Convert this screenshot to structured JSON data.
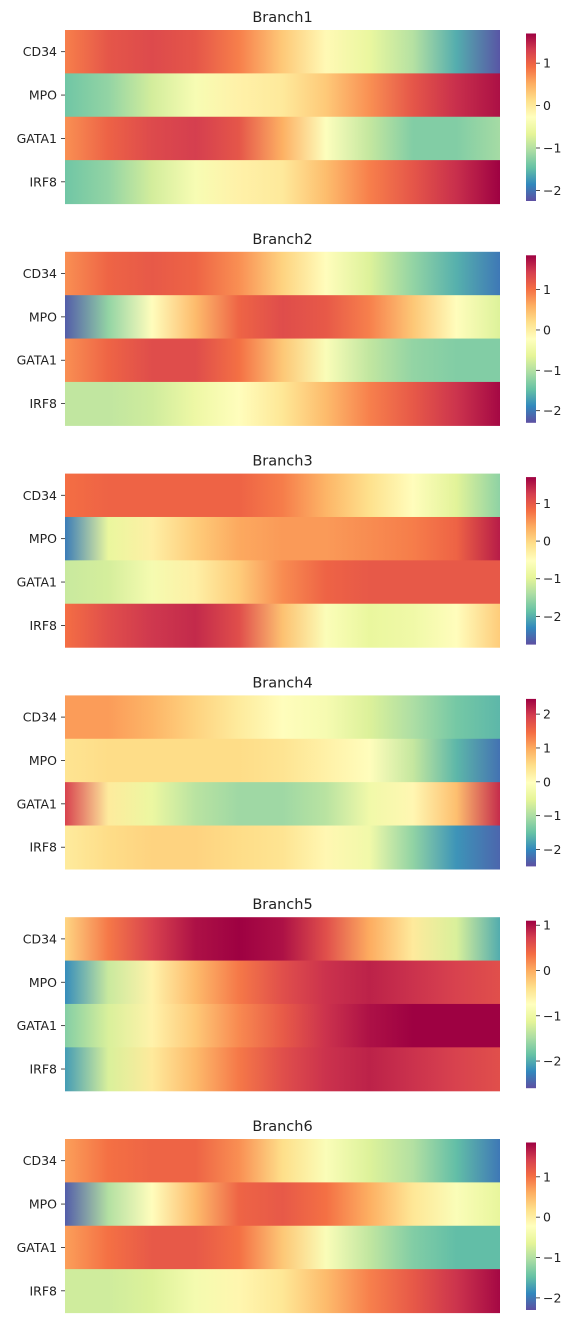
{
  "colorscale": {
    "name": "Spectral_r",
    "stops": [
      "#5e4fa2",
      "#3288bd",
      "#66c2a5",
      "#abdda4",
      "#e6f598",
      "#ffffbf",
      "#fee08b",
      "#fdae61",
      "#f46d43",
      "#d53e4f",
      "#9e0142"
    ]
  },
  "chart_data": [
    {
      "type": "heatmap",
      "title": "Branch1",
      "rows": [
        "CD34",
        "MPO",
        "GATA1",
        "IRF8"
      ],
      "x_positions": [
        0,
        0.1,
        0.2,
        0.3,
        0.4,
        0.5,
        0.6,
        0.7,
        0.8,
        0.9,
        1.0
      ],
      "values": [
        [
          0.8,
          1.1,
          1.2,
          1.1,
          0.8,
          0.3,
          -0.2,
          -0.6,
          -1.0,
          -1.6,
          -2.2
        ],
        [
          -1.4,
          -1.2,
          -0.8,
          -0.4,
          -0.1,
          0.0,
          0.3,
          0.7,
          1.1,
          1.4,
          1.6
        ],
        [
          0.7,
          1.0,
          1.2,
          1.3,
          1.1,
          0.5,
          -0.3,
          -0.9,
          -1.3,
          -1.3,
          -1.1
        ],
        [
          -1.4,
          -1.2,
          -0.8,
          -0.4,
          -0.1,
          0.0,
          0.4,
          0.8,
          1.1,
          1.4,
          1.7
        ]
      ],
      "colorbar": {
        "ticks": [
          1,
          0,
          -1,
          -2
        ],
        "tick_labels": [
          "1",
          "0",
          "−1",
          "−2"
        ],
        "range": [
          -2.25,
          1.7
        ]
      }
    },
    {
      "type": "heatmap",
      "title": "Branch2",
      "rows": [
        "CD34",
        "MPO",
        "GATA1",
        "IRF8"
      ],
      "x_positions": [
        0,
        0.1,
        0.2,
        0.3,
        0.4,
        0.5,
        0.6,
        0.7,
        0.8,
        0.9,
        1.0
      ],
      "values": [
        [
          0.8,
          1.1,
          1.2,
          1.1,
          0.8,
          0.3,
          -0.2,
          -0.7,
          -1.2,
          -1.6,
          -2.0
        ],
        [
          -2.2,
          -1.2,
          -0.2,
          0.5,
          1.1,
          1.3,
          1.2,
          0.9,
          0.4,
          -0.2,
          -0.7
        ],
        [
          0.8,
          1.1,
          1.3,
          1.3,
          1.0,
          0.4,
          -0.3,
          -0.9,
          -1.2,
          -1.3,
          -1.3
        ],
        [
          -0.9,
          -0.9,
          -0.8,
          -0.5,
          -0.2,
          0.1,
          0.5,
          0.9,
          1.2,
          1.5,
          1.8
        ]
      ],
      "colorbar": {
        "ticks": [
          1,
          0,
          -1,
          -2
        ],
        "tick_labels": [
          "1",
          "0",
          "−1",
          "−2"
        ],
        "range": [
          -2.3,
          1.85
        ]
      }
    },
    {
      "type": "heatmap",
      "title": "Branch3",
      "rows": [
        "CD34",
        "MPO",
        "GATA1",
        "IRF8"
      ],
      "x_positions": [
        0,
        0.1,
        0.2,
        0.3,
        0.4,
        0.5,
        0.6,
        0.7,
        0.8,
        0.9,
        1.0
      ],
      "values": [
        [
          0.8,
          0.9,
          0.9,
          0.9,
          0.9,
          0.7,
          0.3,
          -0.1,
          -0.5,
          -1.0,
          -1.6
        ],
        [
          -2.4,
          -0.9,
          -0.3,
          0.1,
          0.4,
          0.5,
          0.5,
          0.6,
          0.7,
          0.9,
          1.5
        ],
        [
          -1.2,
          -1.1,
          -0.7,
          -0.3,
          0.1,
          0.6,
          0.9,
          1.0,
          1.0,
          1.0,
          1.0
        ],
        [
          0.8,
          1.1,
          1.3,
          1.4,
          1.1,
          0.2,
          -0.6,
          -0.9,
          -0.8,
          -0.5,
          0.1
        ]
      ],
      "colorbar": {
        "ticks": [
          1,
          0,
          -1,
          -2
        ],
        "tick_labels": [
          "1",
          "0",
          "−1",
          "−2"
        ],
        "range": [
          -2.75,
          1.7
        ]
      }
    },
    {
      "type": "heatmap",
      "title": "Branch4",
      "rows": [
        "CD34",
        "MPO",
        "GATA1",
        "IRF8"
      ],
      "x_positions": [
        0,
        0.1,
        0.2,
        0.3,
        0.4,
        0.5,
        0.6,
        0.7,
        0.8,
        0.9,
        1.0
      ],
      "values": [
        [
          1.1,
          1.1,
          0.9,
          0.6,
          0.3,
          0.0,
          -0.2,
          -0.6,
          -1.0,
          -1.4,
          -1.6
        ],
        [
          0.4,
          0.5,
          0.5,
          0.5,
          0.5,
          0.4,
          0.2,
          0.0,
          -0.8,
          -1.6,
          -2.2
        ],
        [
          1.9,
          0.3,
          -0.4,
          -0.9,
          -1.1,
          -1.1,
          -0.9,
          -0.3,
          0.1,
          0.8,
          2.1
        ],
        [
          0.3,
          0.5,
          0.6,
          0.6,
          0.5,
          0.4,
          0.1,
          -0.3,
          -1.2,
          -1.9,
          -2.3
        ]
      ],
      "colorbar": {
        "ticks": [
          2,
          1,
          0,
          -1,
          -2
        ],
        "tick_labels": [
          "2",
          "1",
          "0",
          "−1",
          "−2"
        ],
        "range": [
          -2.5,
          2.45
        ]
      }
    },
    {
      "type": "heatmap",
      "title": "Branch5",
      "rows": [
        "CD34",
        "MPO",
        "GATA1",
        "IRF8"
      ],
      "x_positions": [
        0,
        0.1,
        0.2,
        0.3,
        0.4,
        0.5,
        0.6,
        0.7,
        0.8,
        0.9,
        1.0
      ],
      "values": [
        [
          -0.3,
          0.3,
          0.7,
          1.0,
          1.1,
          1.0,
          0.6,
          0.0,
          -0.5,
          -1.2,
          -2.0
        ],
        [
          -2.2,
          -1.3,
          -0.6,
          -0.1,
          0.3,
          0.6,
          0.8,
          0.9,
          0.8,
          0.7,
          0.6
        ],
        [
          -1.7,
          -1.2,
          -0.6,
          -0.2,
          0.2,
          0.5,
          0.8,
          1.0,
          1.1,
          1.1,
          1.1
        ],
        [
          -2.1,
          -1.2,
          -0.5,
          -0.1,
          0.3,
          0.6,
          0.8,
          0.9,
          0.8,
          0.7,
          0.6
        ]
      ],
      "colorbar": {
        "ticks": [
          1,
          0,
          -1,
          -2
        ],
        "tick_labels": [
          "1",
          "0",
          "−1",
          "−2"
        ],
        "range": [
          -2.6,
          1.1
        ]
      }
    },
    {
      "type": "heatmap",
      "title": "Branch6",
      "rows": [
        "CD34",
        "MPO",
        "GATA1",
        "IRF8"
      ],
      "x_positions": [
        0,
        0.1,
        0.2,
        0.3,
        0.4,
        0.5,
        0.6,
        0.7,
        0.8,
        0.9,
        1.0
      ],
      "values": [
        [
          0.7,
          1.0,
          1.1,
          1.1,
          0.8,
          0.2,
          -0.3,
          -0.7,
          -1.0,
          -1.5,
          -2.0
        ],
        [
          -2.2,
          -1.0,
          -0.2,
          0.5,
          1.1,
          1.2,
          1.0,
          0.6,
          0.1,
          -0.3,
          -0.6
        ],
        [
          0.7,
          1.0,
          1.2,
          1.2,
          1.0,
          0.4,
          -0.3,
          -0.9,
          -1.3,
          -1.5,
          -1.5
        ],
        [
          -0.8,
          -0.8,
          -0.7,
          -0.4,
          -0.1,
          0.1,
          0.5,
          0.9,
          1.2,
          1.5,
          1.8
        ]
      ],
      "colorbar": {
        "ticks": [
          1,
          0,
          -1,
          -2
        ],
        "tick_labels": [
          "1",
          "0",
          "−1",
          "−2"
        ],
        "range": [
          -2.3,
          1.85
        ]
      }
    }
  ]
}
